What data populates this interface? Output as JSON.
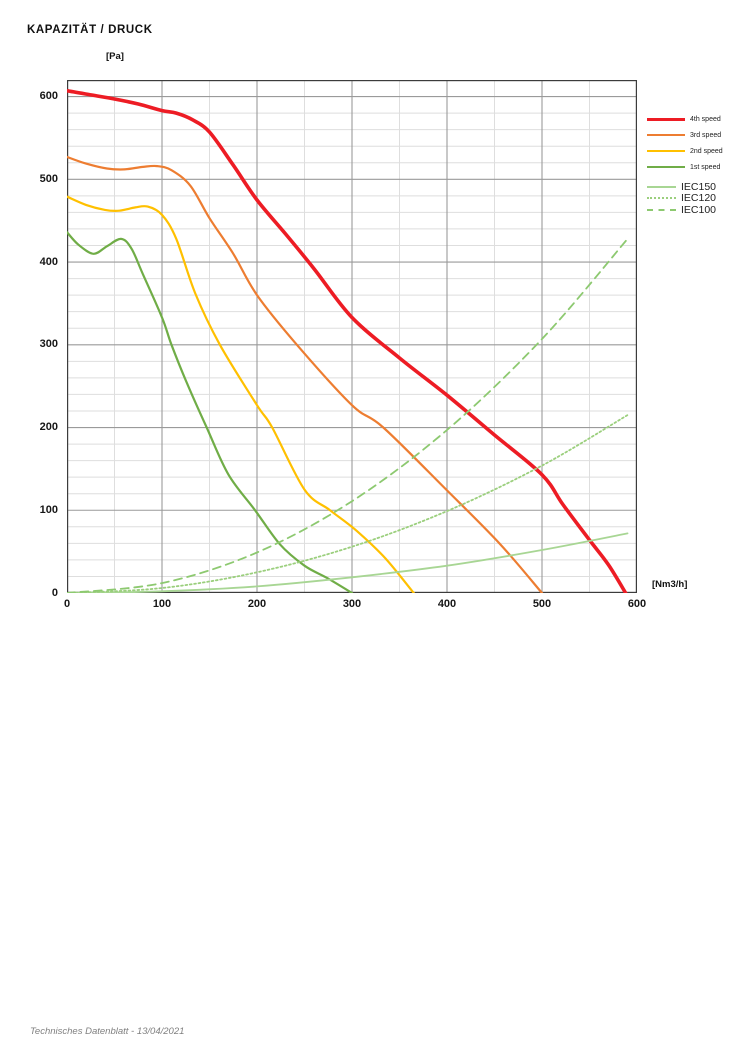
{
  "page": {
    "title": "KAPAZITÄT / DRUCK",
    "footer": "Technisches Datenblatt - 13/04/2021"
  },
  "chart_data": {
    "type": "line",
    "title": "KAPAZITÄT / DRUCK",
    "xlabel": "[Nm3/h]",
    "ylabel": "[Pa]",
    "xlim": [
      0,
      600
    ],
    "ylim": [
      0,
      620
    ],
    "x_ticks": [
      0,
      100,
      200,
      300,
      400,
      500,
      600
    ],
    "y_ticks": [
      0,
      100,
      200,
      300,
      400,
      500,
      600
    ],
    "grid": {
      "x_minor_step": 50,
      "x_major_step": 100,
      "y_minor_step": 20,
      "y_major_step": 100,
      "minor_color": "#dedede",
      "major_color": "#9a9a9a",
      "border_color": "#3c3c3c"
    },
    "legend_position": "top-right-outside",
    "series": [
      {
        "name": "4th speed",
        "group": "speed",
        "color": "#ed1c24",
        "width": 3.6,
        "dash": "solid",
        "points": [
          [
            0,
            607
          ],
          [
            25,
            602
          ],
          [
            50,
            597
          ],
          [
            75,
            591
          ],
          [
            100,
            583
          ],
          [
            115,
            580
          ],
          [
            132,
            572
          ],
          [
            150,
            557
          ],
          [
            175,
            517
          ],
          [
            200,
            475
          ],
          [
            230,
            434
          ],
          [
            260,
            392
          ],
          [
            300,
            333
          ],
          [
            350,
            284
          ],
          [
            400,
            239
          ],
          [
            450,
            191
          ],
          [
            500,
            143
          ],
          [
            522,
            107
          ],
          [
            550,
            64
          ],
          [
            570,
            34
          ],
          [
            588,
            0
          ]
        ]
      },
      {
        "name": "3rd speed",
        "group": "speed",
        "color": "#ed7d31",
        "width": 2.2,
        "dash": "solid",
        "points": [
          [
            0,
            527
          ],
          [
            20,
            519
          ],
          [
            42,
            513
          ],
          [
            60,
            512
          ],
          [
            80,
            515
          ],
          [
            95,
            516
          ],
          [
            110,
            511
          ],
          [
            130,
            492
          ],
          [
            150,
            453
          ],
          [
            175,
            410
          ],
          [
            200,
            360
          ],
          [
            242,
            300
          ],
          [
            300,
            227
          ],
          [
            333,
            200
          ],
          [
            400,
            124
          ],
          [
            456,
            59
          ],
          [
            500,
            0
          ]
        ]
      },
      {
        "name": "2nd speed",
        "group": "speed",
        "color": "#ffc000",
        "width": 2.2,
        "dash": "solid",
        "points": [
          [
            0,
            479
          ],
          [
            20,
            469
          ],
          [
            40,
            463
          ],
          [
            55,
            462
          ],
          [
            72,
            466
          ],
          [
            85,
            467
          ],
          [
            100,
            457
          ],
          [
            115,
            428
          ],
          [
            135,
            362
          ],
          [
            161,
            300
          ],
          [
            200,
            227
          ],
          [
            216,
            200
          ],
          [
            250,
            125
          ],
          [
            277,
            100
          ],
          [
            305,
            75
          ],
          [
            335,
            42
          ],
          [
            365,
            0
          ]
        ]
      },
      {
        "name": "1st speed",
        "group": "speed",
        "color": "#70ad47",
        "width": 2.2,
        "dash": "solid",
        "points": [
          [
            0,
            436
          ],
          [
            12,
            421
          ],
          [
            28,
            410
          ],
          [
            42,
            419
          ],
          [
            57,
            428
          ],
          [
            68,
            416
          ],
          [
            80,
            385
          ],
          [
            100,
            333
          ],
          [
            110,
            300
          ],
          [
            125,
            257
          ],
          [
            147,
            200
          ],
          [
            170,
            143
          ],
          [
            198,
            100
          ],
          [
            224,
            59
          ],
          [
            250,
            33
          ],
          [
            274,
            18
          ],
          [
            300,
            0
          ]
        ]
      },
      {
        "name": "IEC150",
        "group": "iec",
        "color": "#a8d694",
        "width": 1.8,
        "dash": "solid",
        "points": [
          [
            0,
            0
          ],
          [
            100,
            2
          ],
          [
            200,
            8
          ],
          [
            300,
            19
          ],
          [
            400,
            33
          ],
          [
            500,
            52
          ],
          [
            590,
            72
          ]
        ]
      },
      {
        "name": "IEC120",
        "group": "iec",
        "color": "#9bcf7d",
        "width": 1.8,
        "dash": "dotted",
        "points": [
          [
            0,
            0
          ],
          [
            100,
            6
          ],
          [
            200,
            25
          ],
          [
            300,
            56
          ],
          [
            400,
            99
          ],
          [
            500,
            154
          ],
          [
            590,
            215
          ]
        ]
      },
      {
        "name": "IEC100",
        "group": "iec",
        "color": "#8dc970",
        "width": 1.8,
        "dash": "dashed",
        "points": [
          [
            0,
            0
          ],
          [
            100,
            12
          ],
          [
            200,
            49
          ],
          [
            300,
            111
          ],
          [
            400,
            197
          ],
          [
            500,
            307
          ],
          [
            590,
            428
          ]
        ]
      }
    ]
  }
}
